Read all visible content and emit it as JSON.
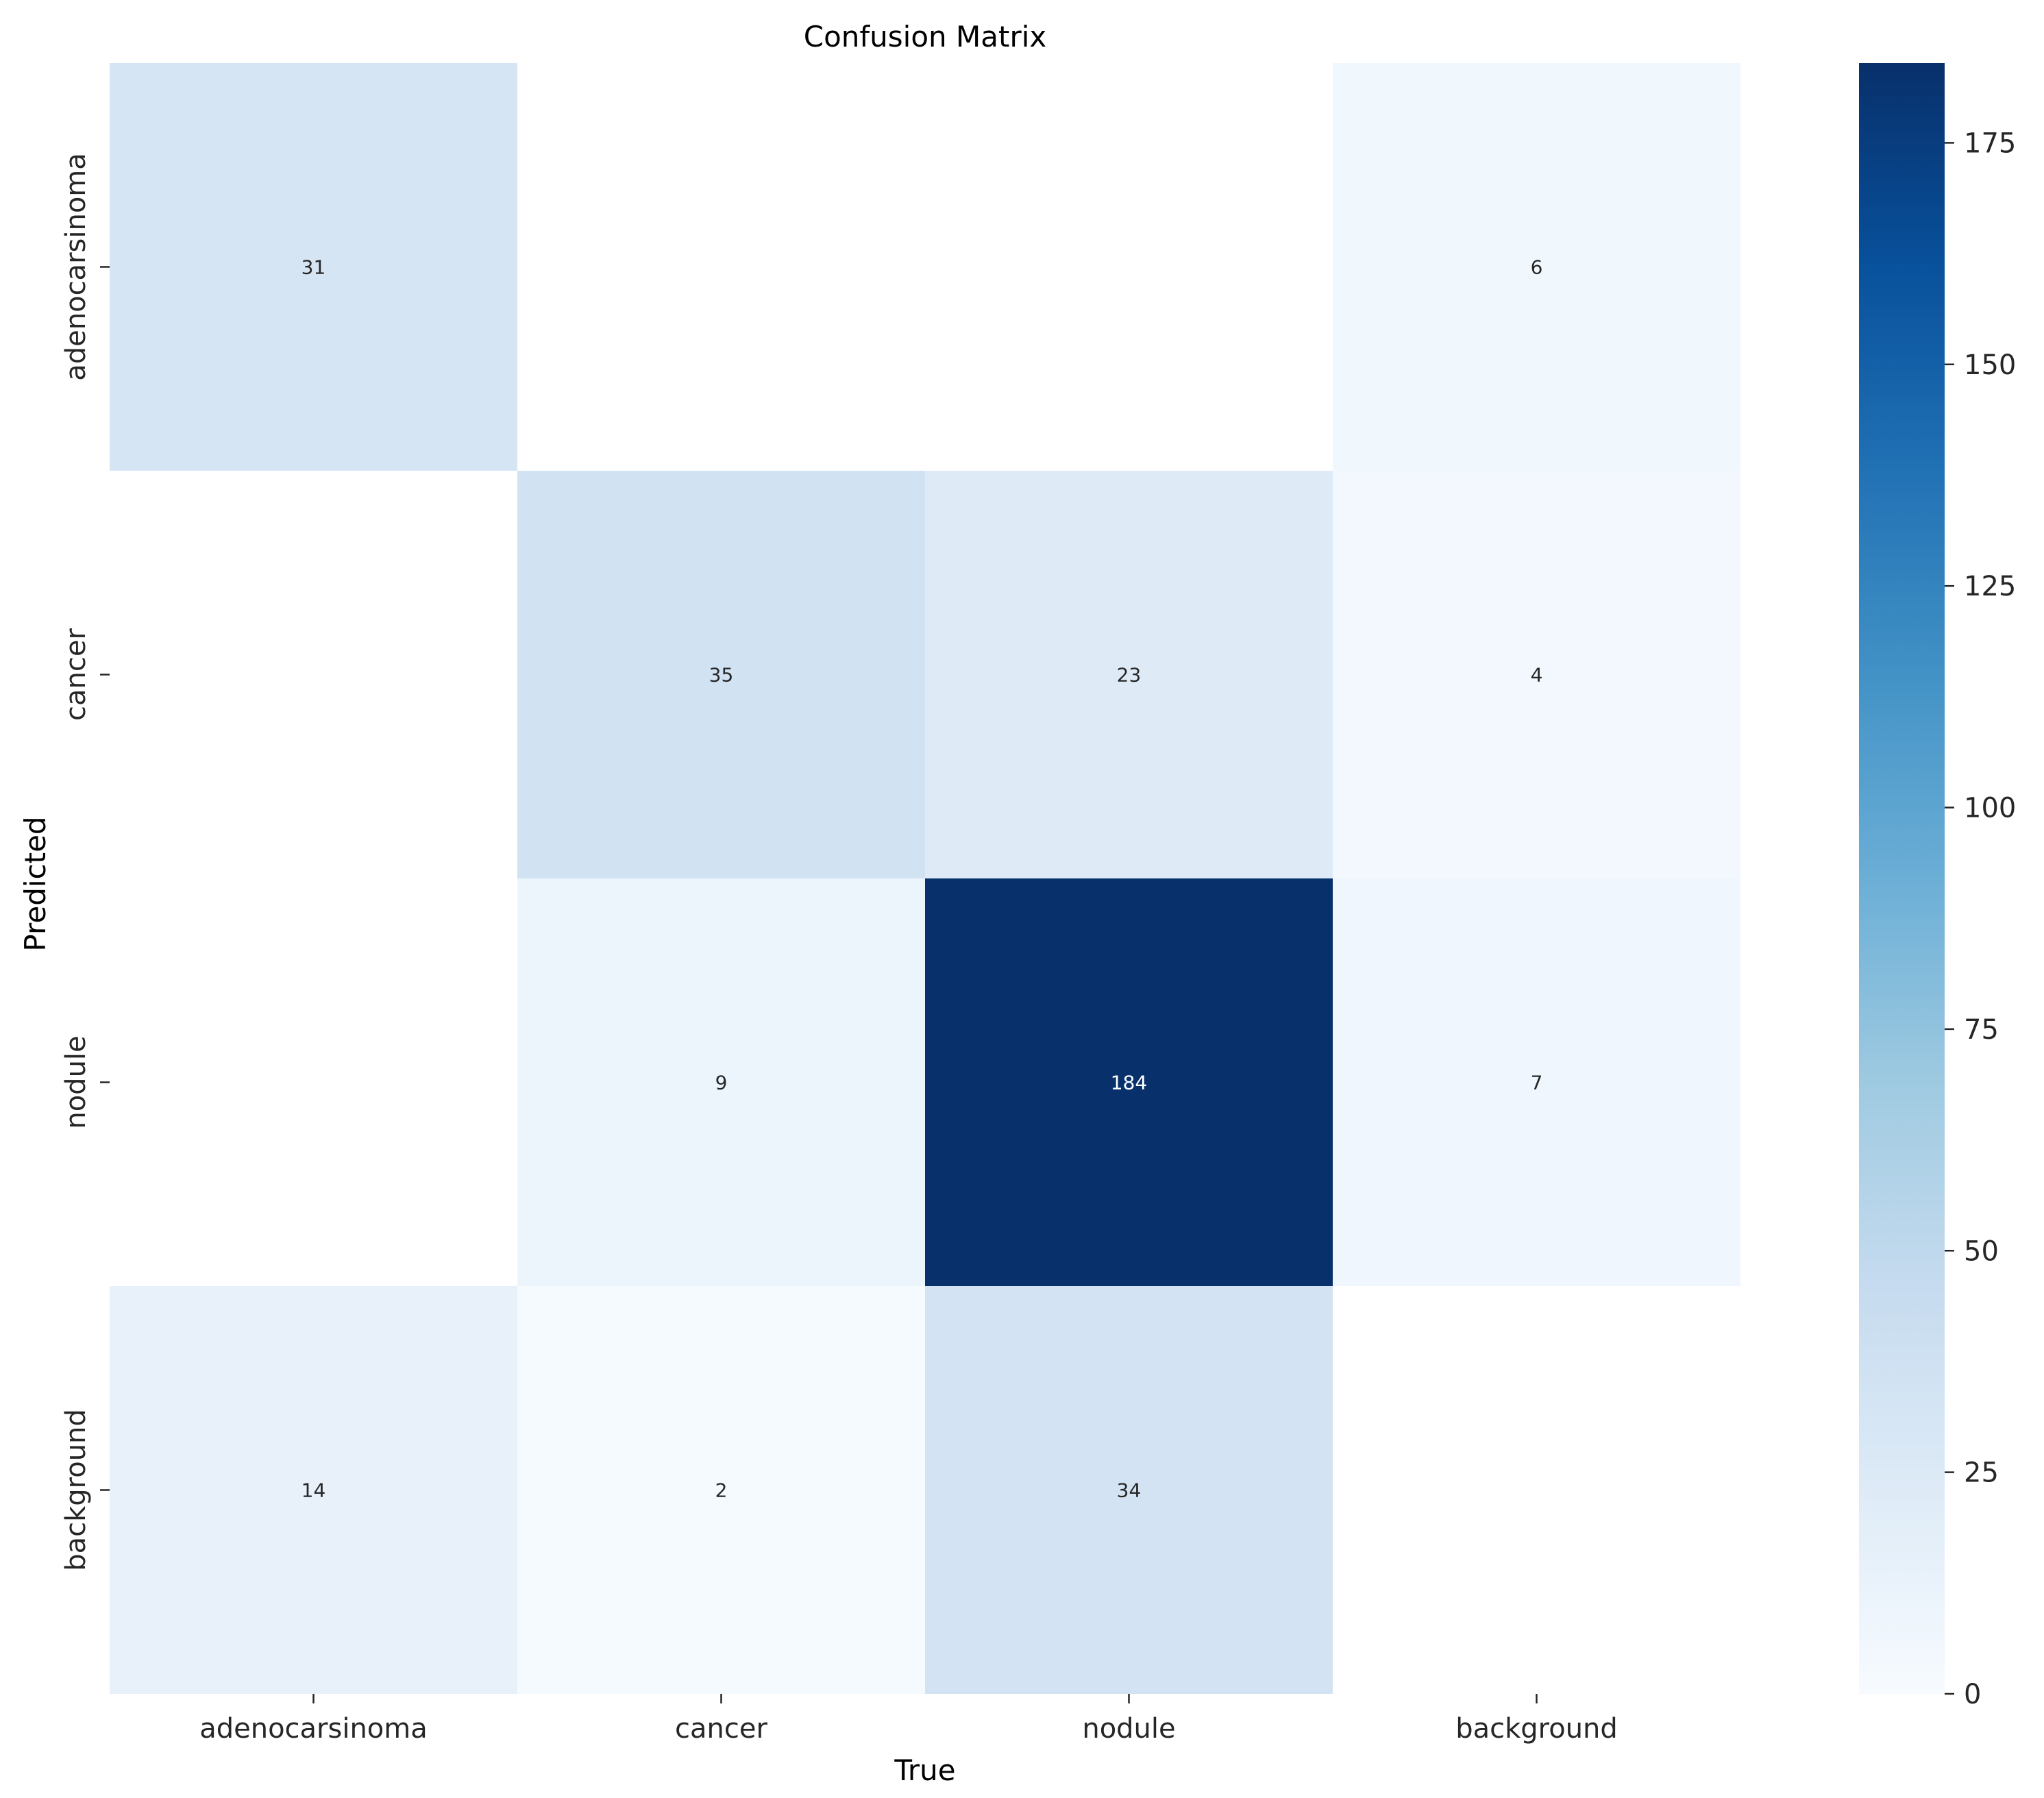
{
  "chart_data": {
    "type": "heatmap",
    "title": "Confusion Matrix",
    "xlabel": "True",
    "ylabel": "Predicted",
    "x_categories": [
      "adenocarsinoma",
      "cancer",
      "nodule",
      "background"
    ],
    "y_categories": [
      "adenocarsinoma",
      "cancer",
      "nodule",
      "background"
    ],
    "values": [
      [
        31,
        null,
        null,
        6
      ],
      [
        null,
        35,
        23,
        4
      ],
      [
        null,
        9,
        184,
        7
      ],
      [
        14,
        2,
        34,
        null
      ]
    ],
    "colorbar": {
      "min": 0,
      "max": 184,
      "ticks": [
        0,
        25,
        50,
        75,
        100,
        125,
        150,
        175
      ],
      "colormap": "Blues"
    },
    "colors": {
      "empty_cell": "#ffffff",
      "dark_text": "#262626",
      "light_text": "#ffffff"
    }
  }
}
